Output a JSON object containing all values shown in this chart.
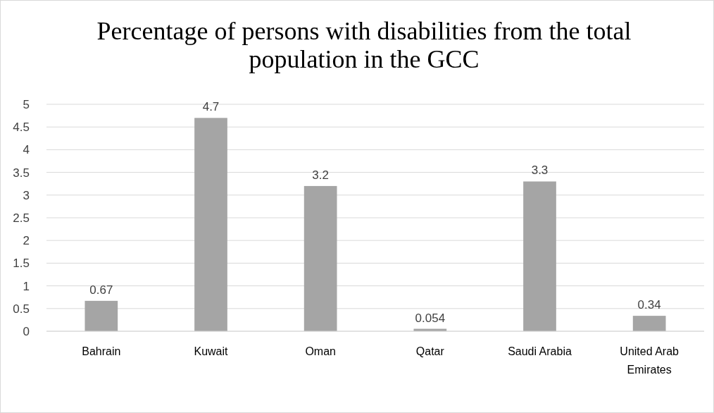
{
  "chart_data": {
    "type": "bar",
    "title": "Percentage of persons with disabilities from the total population in the GCC",
    "categories": [
      "Bahrain",
      "Kuwait",
      "Oman",
      "Qatar",
      "Saudi Arabia",
      "United Arab Emirates"
    ],
    "values": [
      0.67,
      4.7,
      3.2,
      0.054,
      3.3,
      0.34
    ],
    "color": "#a5a5a5",
    "ylim": [
      0,
      5
    ],
    "yticks": [
      0,
      0.5,
      1,
      1.5,
      2,
      2.5,
      3,
      3.5,
      4,
      4.5,
      5
    ],
    "grid": "y",
    "data_labels": true
  }
}
